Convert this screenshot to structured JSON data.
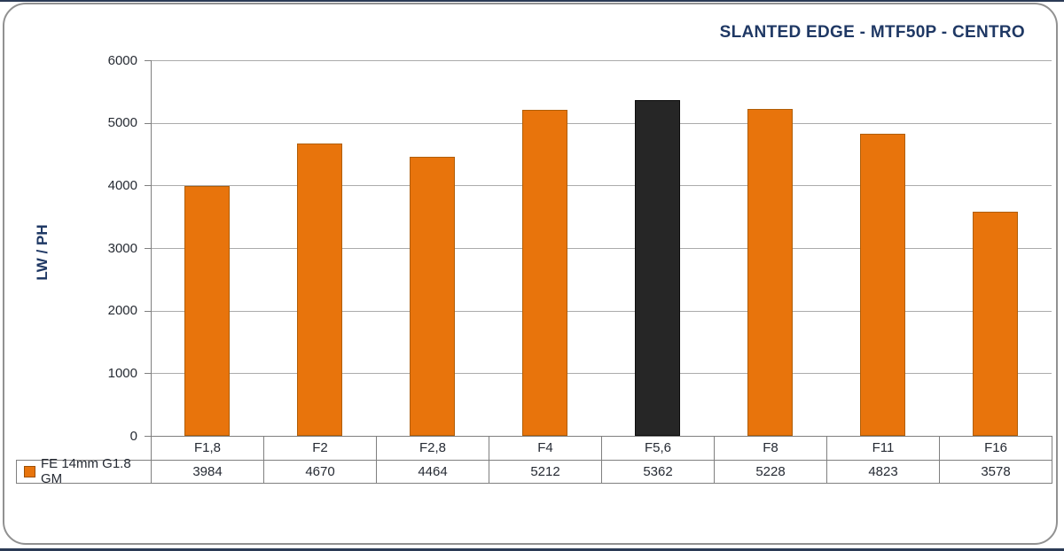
{
  "chart_data": {
    "type": "bar",
    "title": "SLANTED EDGE - MTF50P - CENTRO",
    "ylabel": "LW / PH",
    "xlabel": "",
    "categories": [
      "F1,8",
      "F2",
      "F2,8",
      "F4",
      "F5,6",
      "F8",
      "F11",
      "F16"
    ],
    "series": [
      {
        "name": "FE 14mm G1.8 GM",
        "values": [
          3984,
          4670,
          4464,
          5212,
          5362,
          5228,
          4823,
          3578
        ]
      }
    ],
    "ylim": [
      0,
      6000
    ],
    "ytick_interval": 1000,
    "yticks": [
      "0",
      "1000",
      "2000",
      "3000",
      "4000",
      "5000",
      "6000"
    ],
    "grid": "horizontal",
    "legend_position": "bottom-left-table",
    "highlight_index": 4,
    "data_table_shown": true
  },
  "legend": {
    "label": "FE 14mm G1.8 GM"
  },
  "colors": {
    "bar_fill": "#E8740C",
    "bar_border": "#B05E08",
    "highlight_fill": "#262626",
    "highlight_border": "#0d0d0d",
    "title_text": "#1F3864",
    "grid_line": "#ababab",
    "axis_line": "#7f7f7f",
    "table_text": "#252a33"
  }
}
